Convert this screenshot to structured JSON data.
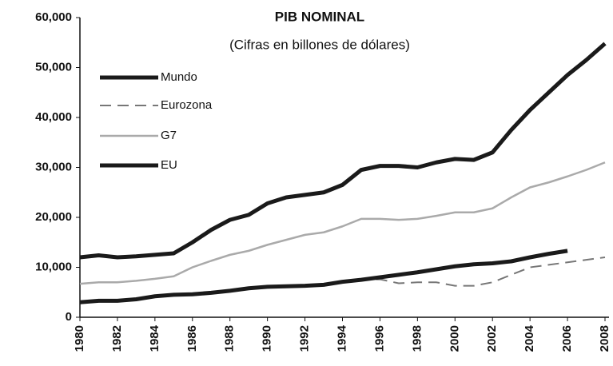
{
  "chart_data": {
    "type": "line",
    "title": "PIB NOMINAL",
    "subtitle": "(Cifras en billones de dólares)",
    "x": [
      1980,
      1981,
      1982,
      1983,
      1984,
      1985,
      1986,
      1987,
      1988,
      1989,
      1990,
      1991,
      1992,
      1993,
      1994,
      1995,
      1996,
      1997,
      1998,
      1999,
      2000,
      2001,
      2002,
      2003,
      2004,
      2005,
      2006,
      2007,
      2008
    ],
    "xlim": [
      1980,
      2008
    ],
    "xticks": [
      1980,
      1982,
      1984,
      1986,
      1988,
      1990,
      1992,
      1994,
      1996,
      1998,
      2000,
      2002,
      2004,
      2006,
      2008
    ],
    "ylim": [
      0,
      60000
    ],
    "yticks": [
      0,
      {
        "value": 10000,
        "label": "10,000"
      },
      {
        "value": 20000,
        "label": "20,000"
      },
      {
        "value": 30000,
        "label": "30,000"
      },
      {
        "value": 40000,
        "label": "40,000"
      },
      {
        "value": 50000,
        "label": "50,000"
      },
      {
        "value": 60000,
        "label": "60,000"
      }
    ],
    "legend": "upper-left",
    "series": [
      {
        "name": "Mundo",
        "color": "#1a1a1a",
        "style": "solid",
        "width": 5,
        "values": [
          12000,
          12400,
          12000,
          12200,
          12500,
          12800,
          15000,
          17500,
          19500,
          20500,
          22800,
          24000,
          24500,
          25000,
          26500,
          29500,
          30300,
          30300,
          30000,
          31000,
          31700,
          31500,
          33000,
          37500,
          41500,
          45000,
          48500,
          51500,
          54800
        ]
      },
      {
        "name": "Eurozona",
        "color": "#777777",
        "style": "dashed",
        "width": 2,
        "values": [
          null,
          null,
          null,
          null,
          null,
          null,
          null,
          null,
          null,
          null,
          null,
          null,
          null,
          6500,
          7000,
          7500,
          7600,
          6800,
          7000,
          7000,
          6300,
          6300,
          7000,
          8500,
          10000,
          10500,
          11000,
          11500,
          12000
        ]
      },
      {
        "name": "G7",
        "color": "#aaaaaa",
        "style": "solid",
        "width": 2.5,
        "values": [
          6700,
          7000,
          7000,
          7300,
          7700,
          8200,
          10000,
          11300,
          12500,
          13300,
          14500,
          15500,
          16500,
          17000,
          18200,
          19700,
          19700,
          19500,
          19700,
          20300,
          21000,
          21000,
          21800,
          24000,
          26000,
          27000,
          28200,
          29500,
          31000
        ]
      },
      {
        "name": "EU",
        "color": "#1a1a1a",
        "style": "solid",
        "width": 5,
        "values": [
          3000,
          3300,
          3300,
          3600,
          4200,
          4500,
          4600,
          4900,
          5300,
          5800,
          6100,
          6200,
          6300,
          6500,
          7100,
          7500,
          8000,
          8500,
          9000,
          9600,
          10200,
          10600,
          10800,
          11200,
          12000,
          12700,
          13300,
          null,
          null
        ]
      }
    ]
  }
}
